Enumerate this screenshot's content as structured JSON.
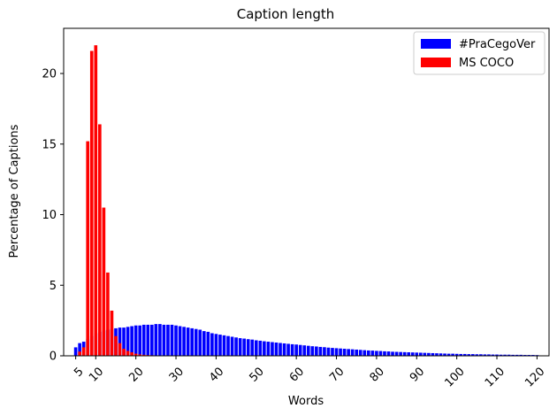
{
  "chart_data": {
    "type": "bar",
    "title": "Caption length",
    "xlabel": "Words",
    "ylabel": "Percentage of Captions",
    "xlim": [
      2,
      123
    ],
    "ylim": [
      0,
      23.2
    ],
    "xticks": [
      5,
      10,
      20,
      30,
      40,
      50,
      60,
      70,
      80,
      90,
      100,
      110,
      120
    ],
    "yticks": [
      0,
      5,
      10,
      15,
      20
    ],
    "legend_position": "top-right",
    "grid": false,
    "series": [
      {
        "name": "#PraCegoVer",
        "color": "#0000ff",
        "x_start": 5,
        "values": [
          0.6,
          0.9,
          1.0,
          1.2,
          1.4,
          1.6,
          1.7,
          1.8,
          1.85,
          1.9,
          1.95,
          2.0,
          2.0,
          2.05,
          2.1,
          2.15,
          2.15,
          2.2,
          2.2,
          2.2,
          2.25,
          2.25,
          2.2,
          2.2,
          2.2,
          2.15,
          2.1,
          2.05,
          2.0,
          1.95,
          1.9,
          1.85,
          1.75,
          1.7,
          1.6,
          1.55,
          1.5,
          1.45,
          1.4,
          1.35,
          1.3,
          1.25,
          1.22,
          1.18,
          1.15,
          1.1,
          1.07,
          1.03,
          1.0,
          0.97,
          0.94,
          0.91,
          0.88,
          0.85,
          0.82,
          0.8,
          0.77,
          0.74,
          0.71,
          0.68,
          0.66,
          0.63,
          0.61,
          0.58,
          0.56,
          0.54,
          0.52,
          0.5,
          0.48,
          0.46,
          0.44,
          0.42,
          0.4,
          0.38,
          0.37,
          0.35,
          0.34,
          0.32,
          0.31,
          0.29,
          0.28,
          0.27,
          0.26,
          0.25,
          0.24,
          0.23,
          0.22,
          0.21,
          0.2,
          0.19,
          0.18,
          0.17,
          0.16,
          0.15,
          0.15,
          0.14,
          0.13,
          0.13,
          0.12,
          0.12,
          0.11,
          0.11,
          0.1,
          0.1,
          0.09,
          0.09,
          0.08,
          0.08,
          0.08,
          0.07,
          0.07,
          0.07,
          0.06,
          0.06,
          0.06,
          0.05
        ]
      },
      {
        "name": "MS COCO",
        "color": "#ff0000",
        "x_start": 6,
        "values": [
          0.3,
          0.6,
          15.2,
          21.6,
          22.0,
          16.4,
          10.5,
          5.9,
          3.2,
          1.4,
          0.9,
          0.5,
          0.35,
          0.25,
          0.15,
          0.1,
          0.07,
          0.05,
          0.04,
          0.03,
          0.02
        ]
      }
    ]
  }
}
